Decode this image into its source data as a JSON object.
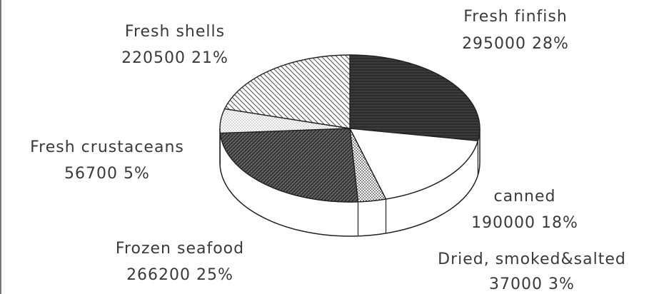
{
  "chart_data": {
    "type": "pie",
    "style": "3d",
    "slices": [
      {
        "name": "Fresh finfish",
        "value": 295000,
        "percent": "28%",
        "fill": "#2a2a2a"
      },
      {
        "name": "canned",
        "value": 190000,
        "percent": "18%",
        "fill": "#ffffff"
      },
      {
        "name": "Dried, smoked&salted",
        "value": 37000,
        "percent": "3%",
        "fill": "#cfcfcf"
      },
      {
        "name": "Frozen seafood",
        "value": 266200,
        "percent": "25%",
        "fill": "#555555"
      },
      {
        "name": "Fresh crustaceans",
        "value": 56700,
        "percent": "5%",
        "fill": "#eeeeee"
      },
      {
        "name": "Fresh shells",
        "value": 220500,
        "percent": "21%",
        "fill": "#cccccc"
      }
    ]
  }
}
